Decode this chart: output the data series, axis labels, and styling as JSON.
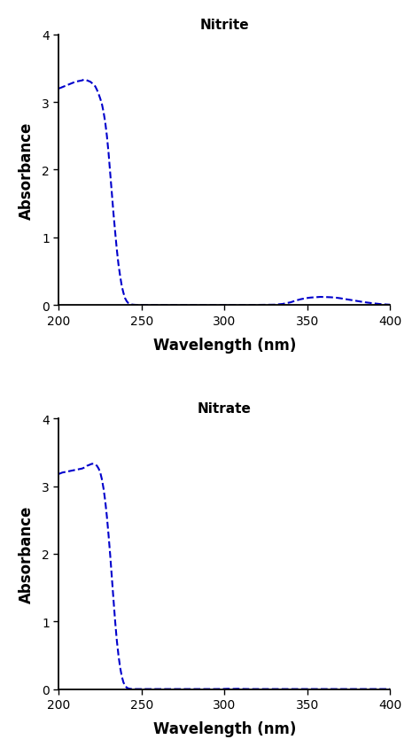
{
  "title_top": "Nitrite",
  "title_bottom": "Nitrate",
  "xlabel": "Wavelength (nm)",
  "ylabel": "Absorbance",
  "xlim": [
    200,
    400
  ],
  "ylim": [
    0,
    4
  ],
  "xticks": [
    200,
    250,
    300,
    350,
    400
  ],
  "yticks": [
    0,
    1,
    2,
    3,
    4
  ],
  "line_color": "#0000CC",
  "line_style": "--",
  "line_width": 1.5,
  "bg_color": "#ffffff",
  "title_fontsize": 11,
  "label_fontsize": 12,
  "tick_fontsize": 10,
  "nitrite_curve": {
    "x": [
      200,
      202,
      204,
      206,
      208,
      210,
      212,
      214,
      215,
      216,
      217,
      218,
      219,
      220,
      221,
      222,
      223,
      224,
      225,
      226,
      227,
      228,
      229,
      230,
      231,
      232,
      233,
      234,
      235,
      236,
      237,
      238,
      239,
      240,
      241,
      242,
      243,
      244,
      245,
      246,
      247,
      248,
      249,
      250,
      252,
      255,
      260,
      265,
      270,
      275,
      280,
      285,
      290,
      295,
      300,
      310,
      320,
      330,
      335,
      340,
      343,
      346,
      349,
      352,
      355,
      358,
      361,
      364,
      367,
      370,
      375,
      380,
      385,
      390,
      395,
      400
    ],
    "y": [
      3.2,
      3.22,
      3.24,
      3.26,
      3.28,
      3.3,
      3.31,
      3.32,
      3.33,
      3.33,
      3.32,
      3.31,
      3.3,
      3.28,
      3.26,
      3.23,
      3.18,
      3.12,
      3.05,
      2.97,
      2.85,
      2.7,
      2.5,
      2.25,
      1.95,
      1.65,
      1.35,
      1.08,
      0.82,
      0.6,
      0.43,
      0.28,
      0.18,
      0.1,
      0.055,
      0.028,
      0.015,
      0.008,
      0.005,
      0.003,
      0.002,
      0.001,
      0.001,
      0.001,
      0.001,
      0.001,
      0.001,
      0.001,
      0.001,
      0.001,
      0.001,
      0.001,
      0.001,
      0.001,
      0.001,
      0.001,
      0.002,
      0.005,
      0.015,
      0.04,
      0.065,
      0.085,
      0.1,
      0.11,
      0.115,
      0.12,
      0.118,
      0.115,
      0.11,
      0.1,
      0.08,
      0.06,
      0.04,
      0.025,
      0.012,
      0.005
    ]
  },
  "nitrate_curve": {
    "x": [
      200,
      202,
      204,
      206,
      208,
      210,
      212,
      214,
      215,
      216,
      217,
      218,
      219,
      220,
      221,
      222,
      223,
      224,
      225,
      226,
      227,
      228,
      229,
      230,
      231,
      232,
      233,
      234,
      235,
      236,
      237,
      238,
      239,
      240,
      241,
      242,
      243,
      244,
      245,
      246,
      247,
      248,
      249,
      250,
      252,
      255,
      260,
      265,
      270,
      275,
      280,
      285,
      290,
      295,
      300,
      302,
      305,
      308,
      310,
      315,
      320,
      340,
      360,
      380,
      400
    ],
    "y": [
      3.18,
      3.2,
      3.21,
      3.22,
      3.23,
      3.24,
      3.25,
      3.26,
      3.27,
      3.28,
      3.3,
      3.31,
      3.32,
      3.33,
      3.33,
      3.32,
      3.3,
      3.26,
      3.2,
      3.1,
      2.96,
      2.78,
      2.55,
      2.28,
      1.98,
      1.65,
      1.32,
      1.0,
      0.72,
      0.5,
      0.32,
      0.19,
      0.1,
      0.05,
      0.022,
      0.01,
      0.005,
      0.002,
      0.001,
      0.001,
      0.001,
      0.001,
      0.001,
      0.001,
      0.001,
      0.001,
      0.001,
      0.001,
      0.001,
      0.001,
      0.001,
      0.001,
      0.001,
      0.001,
      0.003,
      0.005,
      0.003,
      0.005,
      0.003,
      0.001,
      0.001,
      0.001,
      0.001,
      0.001,
      0.001
    ]
  }
}
